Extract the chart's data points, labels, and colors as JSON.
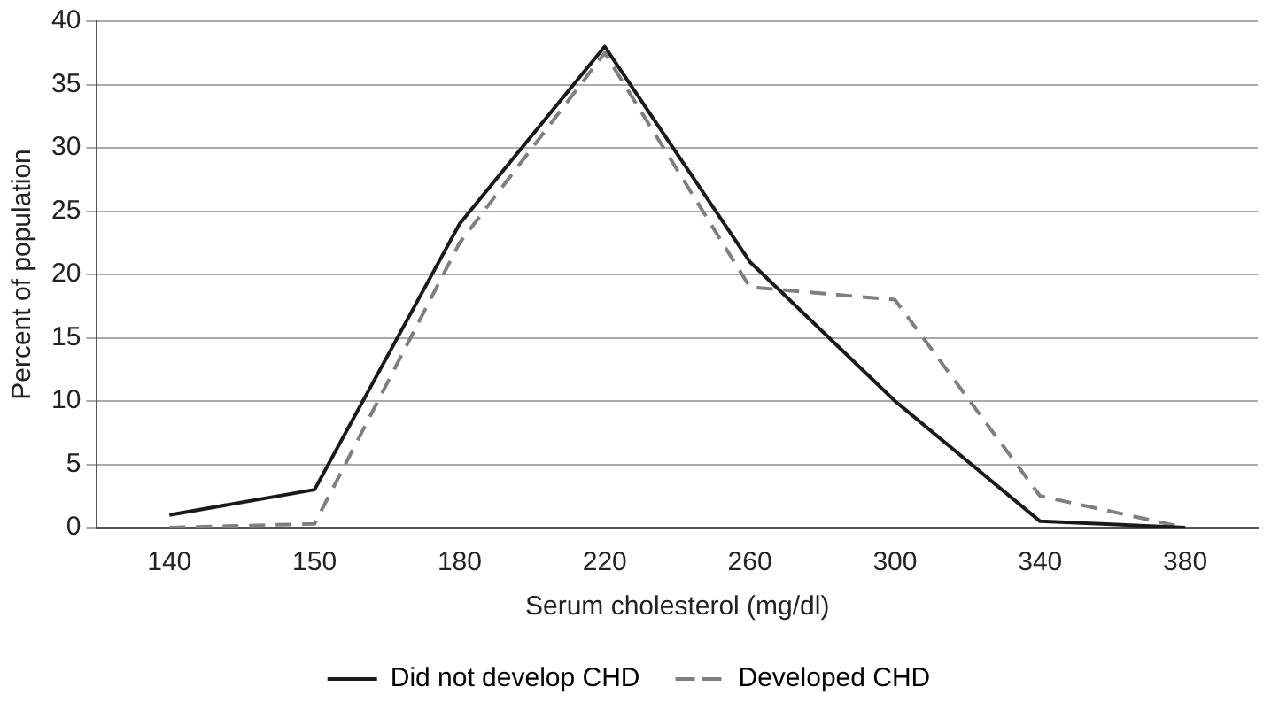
{
  "chart_data": {
    "type": "line",
    "xlabel": "Serum cholesterol (mg/dl)",
    "ylabel": "Percent of population",
    "categories": [
      "140",
      "150",
      "180",
      "220",
      "260",
      "300",
      "340",
      "380"
    ],
    "series": [
      {
        "name": "Did not develop CHD",
        "color": "#1a1a1a",
        "line_style": "solid",
        "values": [
          1,
          3,
          24,
          38,
          21,
          10,
          0.5,
          0
        ]
      },
      {
        "name": "Developed CHD",
        "color": "#7f7f7f",
        "line_style": "dashed",
        "values": [
          0,
          0.3,
          22.5,
          37.5,
          19,
          18,
          2.5,
          0
        ]
      }
    ],
    "ylim": [
      0,
      40
    ],
    "yticks": [
      0,
      5,
      10,
      15,
      20,
      25,
      30,
      35,
      40
    ],
    "grid": "y",
    "legend": "bottom",
    "marker": "none"
  }
}
